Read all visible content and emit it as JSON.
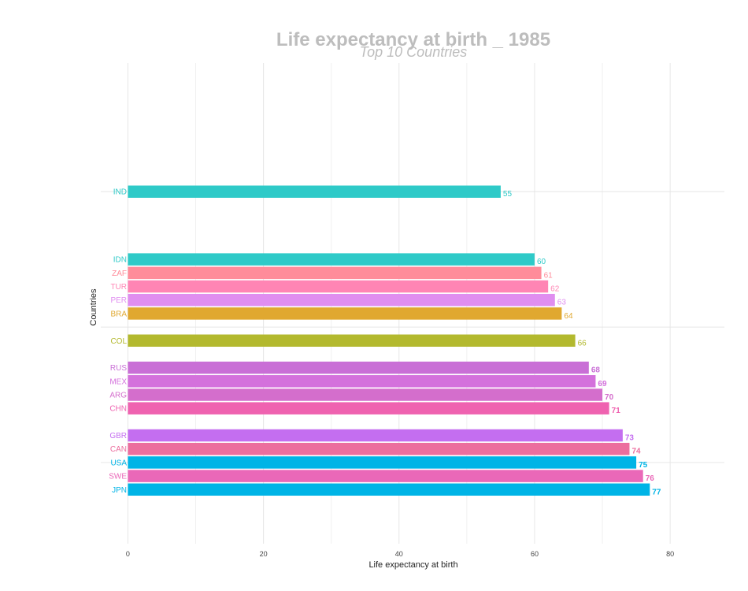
{
  "chart_data": {
    "type": "bar",
    "orientation": "horizontal",
    "title": "Life expectancy at birth _ 1985",
    "subtitle": "Top 10 Countries",
    "xlabel": "Life expectancy at birth",
    "ylabel": "Countries",
    "xlim": [
      -4,
      88
    ],
    "xticks": [
      0,
      20,
      40,
      60,
      80
    ],
    "ylim": [
      0.5,
      36
    ],
    "grid": true,
    "legend": "none",
    "bars": [
      {
        "label": "IND",
        "value": 55,
        "rank": 10,
        "color": "#2ecac8",
        "bold": false
      },
      {
        "label": "IDN",
        "value": 60,
        "rank": 15,
        "color": "#2ecac8",
        "bold": false
      },
      {
        "label": "ZAF",
        "value": 61,
        "rank": 16,
        "color": "#ff8c9a",
        "bold": false
      },
      {
        "label": "TUR",
        "value": 62,
        "rank": 17,
        "color": "#ff85b4",
        "bold": false
      },
      {
        "label": "PER",
        "value": 63,
        "rank": 18,
        "color": "#e08ef0",
        "bold": false
      },
      {
        "label": "BRA",
        "value": 64,
        "rank": 19,
        "color": "#e0a830",
        "bold": false
      },
      {
        "label": "COL",
        "value": 66,
        "rank": 21,
        "color": "#b3b92e",
        "bold": false
      },
      {
        "label": "RUS",
        "value": 68,
        "rank": 23,
        "color": "#c96fd6",
        "bold": true
      },
      {
        "label": "MEX",
        "value": 69,
        "rank": 24,
        "color": "#d471dc",
        "bold": true
      },
      {
        "label": "ARG",
        "value": 70,
        "rank": 25,
        "color": "#d46ecc",
        "bold": true
      },
      {
        "label": "CHN",
        "value": 71,
        "rank": 26,
        "color": "#ef62b0",
        "bold": true
      },
      {
        "label": "GBR",
        "value": 73,
        "rank": 28,
        "color": "#c46ef0",
        "bold": true
      },
      {
        "label": "CAN",
        "value": 74,
        "rank": 29,
        "color": "#ec6e9e",
        "bold": true
      },
      {
        "label": "USA",
        "value": 75,
        "rank": 30,
        "color": "#00b4e6",
        "bold": true
      },
      {
        "label": "SWE",
        "value": 76,
        "rank": 31,
        "color": "#ea68b8",
        "bold": true
      },
      {
        "label": "JPN",
        "value": 77,
        "rank": 32,
        "color": "#00b4e6",
        "bold": true
      }
    ]
  }
}
